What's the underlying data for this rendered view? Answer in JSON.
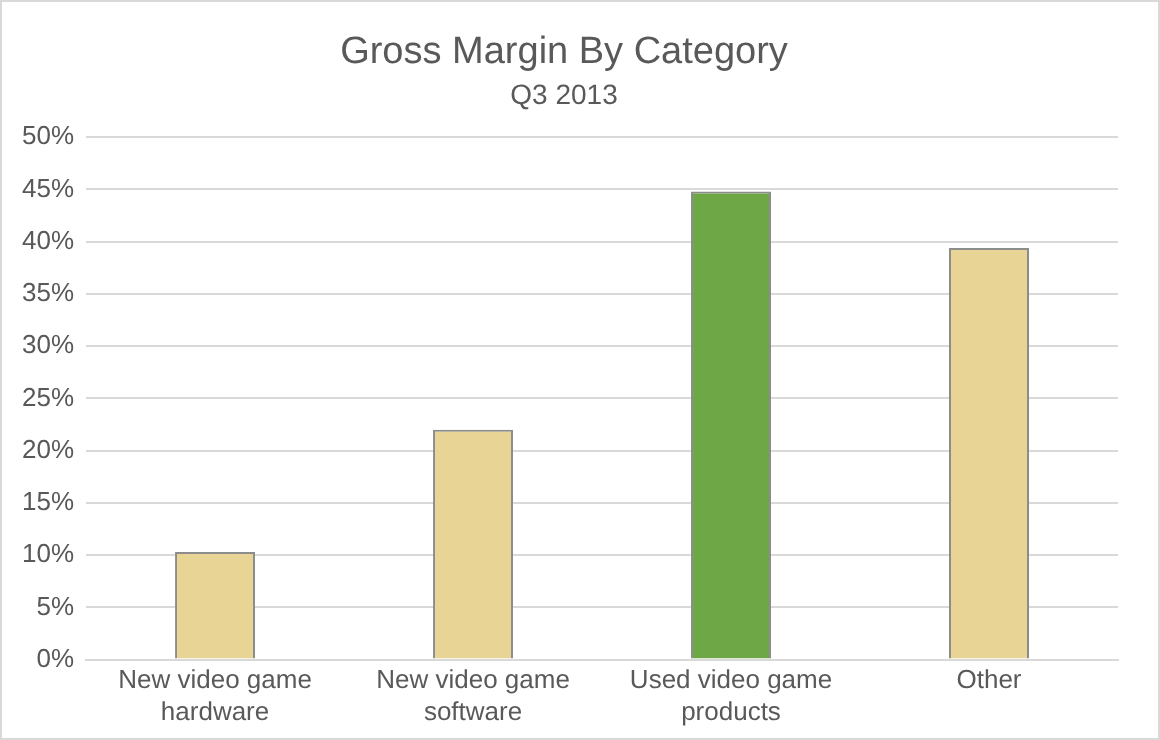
{
  "chart_data": {
    "type": "bar",
    "title": "Gross Margin By Category",
    "subtitle": "Q3 2013",
    "categories": [
      "New video game hardware",
      "New video game software",
      "Used video game products",
      "Other"
    ],
    "values": [
      10.3,
      22.0,
      44.8,
      39.4
    ],
    "colors": [
      "#e8d596",
      "#e8d596",
      "#6ea846",
      "#e8d596"
    ],
    "ylim": [
      0,
      50
    ],
    "yticks": [
      {
        "value": 0,
        "label": "0%"
      },
      {
        "value": 5,
        "label": "5%"
      },
      {
        "value": 10,
        "label": "10%"
      },
      {
        "value": 15,
        "label": "15%"
      },
      {
        "value": 20,
        "label": "20%"
      },
      {
        "value": 25,
        "label": "25%"
      },
      {
        "value": 30,
        "label": "30%"
      },
      {
        "value": 35,
        "label": "35%"
      },
      {
        "value": 40,
        "label": "40%"
      },
      {
        "value": 45,
        "label": "45%"
      },
      {
        "value": 50,
        "label": "50%"
      }
    ],
    "grid": "y",
    "legend": false
  }
}
